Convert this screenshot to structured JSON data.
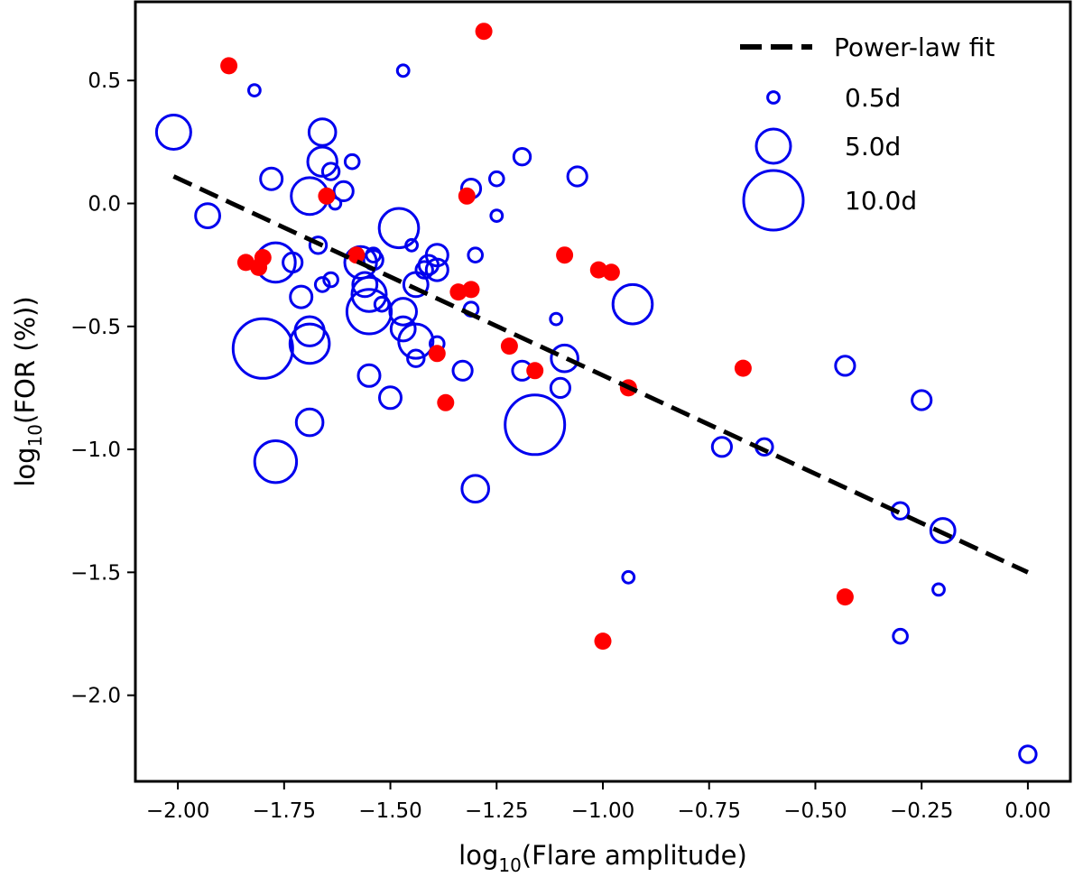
{
  "chart_data": {
    "type": "scatter",
    "xlabel": {
      "base": "log",
      "sub": "10",
      "rest": "(Flare amplitude)"
    },
    "ylabel": {
      "base": "log",
      "sub": "10",
      "rest": "(FOR (%))"
    },
    "xlim": [
      -2.1,
      0.1
    ],
    "ylim": [
      -2.35,
      0.82
    ],
    "xticks": [
      -2.0,
      -1.75,
      -1.5,
      -1.25,
      -1.0,
      -0.75,
      -0.5,
      -0.25,
      0.0
    ],
    "xtick_labels": [
      "−2.00",
      "−1.75",
      "−1.50",
      "−1.25",
      "−1.00",
      "−0.75",
      "−0.50",
      "−0.25",
      "0.00"
    ],
    "yticks": [
      0.5,
      0.0,
      -0.5,
      -1.0,
      -1.5,
      -2.0
    ],
    "ytick_labels": [
      "0.5",
      "0.0",
      "−0.5",
      "−1.0",
      "−1.5",
      "−2.0"
    ],
    "grid": false,
    "legend_position": "top-right",
    "colors": {
      "open": "#0000ee",
      "filled": "#ff0000",
      "fit": "#000000"
    },
    "fit": {
      "label": "Power-law fit",
      "x": [
        -2.01,
        0.0
      ],
      "y": [
        0.11,
        -1.5
      ]
    },
    "size_legend": [
      {
        "label": "0.5d",
        "duration": 0.5
      },
      {
        "label": "5.0d",
        "duration": 5.0
      },
      {
        "label": "10.0d",
        "duration": 10.0
      }
    ],
    "open_points": [
      {
        "x": -2.01,
        "y": 0.29,
        "d": 5.0
      },
      {
        "x": -1.93,
        "y": -0.05,
        "d": 3.0
      },
      {
        "x": -1.82,
        "y": 0.46,
        "d": 0.5
      },
      {
        "x": -1.78,
        "y": 0.1,
        "d": 2.5
      },
      {
        "x": -1.77,
        "y": -0.24,
        "d": 6.0
      },
      {
        "x": -1.8,
        "y": -0.59,
        "d": 10.0
      },
      {
        "x": -1.77,
        "y": -1.05,
        "d": 6.5
      },
      {
        "x": -1.73,
        "y": -0.24,
        "d": 2.0
      },
      {
        "x": -1.71,
        "y": -0.38,
        "d": 2.5
      },
      {
        "x": -1.69,
        "y": 0.03,
        "d": 5.5
      },
      {
        "x": -1.69,
        "y": -0.52,
        "d": 4.0
      },
      {
        "x": -1.69,
        "y": -0.57,
        "d": 6.0
      },
      {
        "x": -1.69,
        "y": -0.89,
        "d": 3.5
      },
      {
        "x": -1.67,
        "y": -0.17,
        "d": 1.5
      },
      {
        "x": -1.66,
        "y": 0.29,
        "d": 3.5
      },
      {
        "x": -1.66,
        "y": 0.17,
        "d": 4.0
      },
      {
        "x": -1.66,
        "y": -0.33,
        "d": 1.0
      },
      {
        "x": -1.64,
        "y": 0.13,
        "d": 1.5
      },
      {
        "x": -1.64,
        "y": -0.31,
        "d": 1.0
      },
      {
        "x": -1.63,
        "y": 0.0,
        "d": 0.5
      },
      {
        "x": -1.61,
        "y": 0.05,
        "d": 2.0
      },
      {
        "x": -1.59,
        "y": 0.17,
        "d": 1.0
      },
      {
        "x": -1.57,
        "y": -0.24,
        "d": 4.5
      },
      {
        "x": -1.56,
        "y": -0.33,
        "d": 3.0
      },
      {
        "x": -1.55,
        "y": -0.44,
        "d": 7.0
      },
      {
        "x": -1.55,
        "y": -0.37,
        "d": 5.0
      },
      {
        "x": -1.55,
        "y": -0.7,
        "d": 2.5
      },
      {
        "x": -1.54,
        "y": -0.23,
        "d": 2.0
      },
      {
        "x": -1.54,
        "y": -0.21,
        "d": 1.0
      },
      {
        "x": -1.52,
        "y": -0.41,
        "d": 1.0
      },
      {
        "x": -1.5,
        "y": -0.79,
        "d": 2.5
      },
      {
        "x": -1.48,
        "y": -0.1,
        "d": 6.0
      },
      {
        "x": -1.47,
        "y": 0.54,
        "d": 0.5
      },
      {
        "x": -1.47,
        "y": -0.44,
        "d": 3.5
      },
      {
        "x": -1.47,
        "y": -0.51,
        "d": 3.0
      },
      {
        "x": -1.45,
        "y": -0.17,
        "d": 0.5
      },
      {
        "x": -1.44,
        "y": -0.33,
        "d": 3.0
      },
      {
        "x": -1.44,
        "y": -0.56,
        "d": 5.0
      },
      {
        "x": -1.44,
        "y": -0.63,
        "d": 1.5
      },
      {
        "x": -1.42,
        "y": -0.27,
        "d": 1.5
      },
      {
        "x": -1.41,
        "y": -0.25,
        "d": 2.0
      },
      {
        "x": -1.39,
        "y": -0.21,
        "d": 2.5
      },
      {
        "x": -1.39,
        "y": -0.27,
        "d": 2.5
      },
      {
        "x": -1.39,
        "y": -0.57,
        "d": 1.0
      },
      {
        "x": -1.31,
        "y": 0.06,
        "d": 2.0
      },
      {
        "x": -1.3,
        "y": -0.21,
        "d": 1.0
      },
      {
        "x": -1.31,
        "y": -0.43,
        "d": 1.0
      },
      {
        "x": -1.33,
        "y": -0.68,
        "d": 2.0
      },
      {
        "x": -1.3,
        "y": -1.16,
        "d": 3.5
      },
      {
        "x": -1.25,
        "y": 0.1,
        "d": 1.0
      },
      {
        "x": -1.25,
        "y": -0.05,
        "d": 0.5
      },
      {
        "x": -1.19,
        "y": 0.19,
        "d": 1.5
      },
      {
        "x": -1.19,
        "y": -0.68,
        "d": 2.0
      },
      {
        "x": -1.16,
        "y": -0.9,
        "d": 10.0
      },
      {
        "x": -1.11,
        "y": -0.47,
        "d": 0.5
      },
      {
        "x": -1.1,
        "y": -0.75,
        "d": 2.0
      },
      {
        "x": -1.09,
        "y": -0.63,
        "d": 3.5
      },
      {
        "x": -1.06,
        "y": 0.11,
        "d": 2.0
      },
      {
        "x": -0.93,
        "y": -0.41,
        "d": 6.0
      },
      {
        "x": -0.94,
        "y": -1.52,
        "d": 0.5
      },
      {
        "x": -0.72,
        "y": -0.99,
        "d": 2.0
      },
      {
        "x": -0.62,
        "y": -0.99,
        "d": 1.5
      },
      {
        "x": -0.43,
        "y": -0.66,
        "d": 2.0
      },
      {
        "x": -0.3,
        "y": -1.25,
        "d": 1.5
      },
      {
        "x": -0.3,
        "y": -1.76,
        "d": 1.0
      },
      {
        "x": -0.25,
        "y": -0.8,
        "d": 2.0
      },
      {
        "x": -0.21,
        "y": -1.57,
        "d": 0.5
      },
      {
        "x": -0.2,
        "y": -1.33,
        "d": 3.0
      },
      {
        "x": 0.0,
        "y": -2.24,
        "d": 1.5
      }
    ],
    "filled_points": [
      {
        "x": -1.88,
        "y": 0.56
      },
      {
        "x": -1.84,
        "y": -0.24
      },
      {
        "x": -1.81,
        "y": -0.26
      },
      {
        "x": -1.8,
        "y": -0.22
      },
      {
        "x": -1.65,
        "y": 0.03
      },
      {
        "x": -1.58,
        "y": -0.21
      },
      {
        "x": -1.39,
        "y": -0.61
      },
      {
        "x": -1.37,
        "y": -0.81
      },
      {
        "x": -1.34,
        "y": -0.36
      },
      {
        "x": -1.32,
        "y": 0.03
      },
      {
        "x": -1.31,
        "y": -0.35
      },
      {
        "x": -1.28,
        "y": 0.7
      },
      {
        "x": -1.22,
        "y": -0.58
      },
      {
        "x": -1.16,
        "y": -0.68
      },
      {
        "x": -1.09,
        "y": -0.21
      },
      {
        "x": -1.01,
        "y": -0.27
      },
      {
        "x": -0.98,
        "y": -0.28
      },
      {
        "x": -0.94,
        "y": -0.75
      },
      {
        "x": -1.0,
        "y": -1.78
      },
      {
        "x": -0.67,
        "y": -0.67
      },
      {
        "x": -0.43,
        "y": -1.6
      }
    ]
  }
}
